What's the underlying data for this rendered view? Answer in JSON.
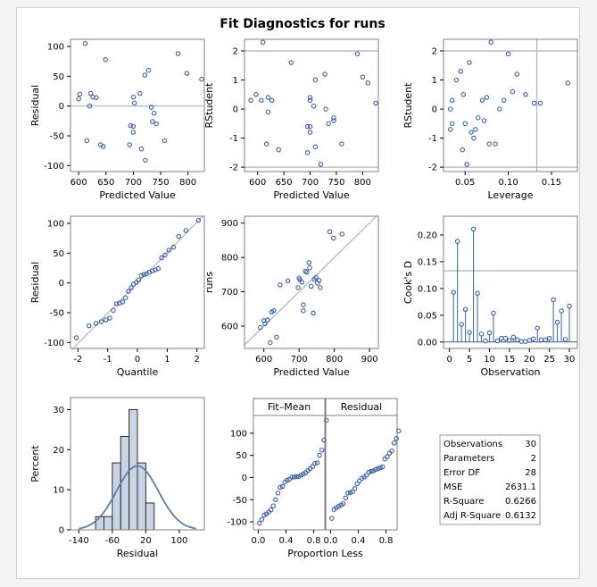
{
  "figure": {
    "title": "Fit Diagnostics for runs"
  },
  "colors": {
    "marker": "#3a5fa8",
    "refline": "#aeb4bd",
    "bar_fill": "#c9d4e4",
    "bar_stroke": "#2b2b2b",
    "normal_curve": "#5b7db1",
    "frame": "#7f7f7f"
  },
  "chart_data": [
    {
      "id": "resid_vs_pred",
      "type": "scatter",
      "xlabel": "Predicted Value",
      "ylabel": "Residual",
      "xlim": [
        585,
        830
      ],
      "ylim": [
        -110,
        112
      ],
      "xticks": [
        600,
        650,
        700,
        750,
        800
      ],
      "yticks": [
        -100,
        -50,
        0,
        50,
        100
      ],
      "hlines": [
        0
      ],
      "x": [
        602,
        612,
        620,
        649,
        622,
        632,
        600,
        626,
        645,
        615,
        700,
        712,
        721,
        702,
        695,
        700,
        738,
        733,
        742,
        735,
        715,
        722,
        757,
        728,
        700,
        693,
        640,
        782,
        798,
        825
      ],
      "y": [
        20,
        105,
        0,
        78,
        21,
        14,
        12,
        15,
        -68,
        -58,
        15,
        21,
        52,
        5,
        -33,
        -44,
        -12,
        -2,
        -30,
        -26,
        -72,
        -91,
        -58,
        60,
        -34,
        -65,
        -65,
        88,
        55,
        45
      ]
    },
    {
      "id": "rstudent_vs_pred",
      "type": "scatter",
      "xlabel": "Predicted Value",
      "ylabel": "RStudent",
      "xlim": [
        575,
        830
      ],
      "ylim": [
        -2.15,
        2.4
      ],
      "xticks": [
        600,
        650,
        700,
        750,
        800
      ],
      "yticks": [
        -2,
        -1,
        0,
        1,
        2
      ],
      "hlines": [
        -2,
        2
      ],
      "x": [
        587,
        597,
        607,
        610,
        620,
        627,
        620,
        640,
        664,
        617,
        700,
        707,
        710,
        700,
        695,
        700,
        735,
        730,
        745,
        745,
        710,
        720,
        760,
        728,
        700,
        695,
        790,
        800,
        810,
        825
      ],
      "y": [
        0.3,
        0.5,
        0.3,
        2.3,
        -0.1,
        0.3,
        0.4,
        -1.4,
        1.6,
        -1.2,
        0.3,
        0.1,
        1.0,
        0.4,
        -0.6,
        -0.8,
        -0.5,
        0,
        -0.3,
        -0.4,
        -1.3,
        -1.9,
        -1.2,
        1.2,
        -0.6,
        -1.5,
        1.9,
        1.1,
        0.9,
        0.2
      ]
    },
    {
      "id": "rstudent_vs_leverage",
      "type": "scatter",
      "xlabel": "Leverage",
      "ylabel": "RStudent",
      "xlim": [
        0.025,
        0.18
      ],
      "ylim": [
        -2.15,
        2.4
      ],
      "xticks": [
        0.05,
        0.1,
        0.15
      ],
      "yticks": [
        -2,
        -1,
        0,
        1,
        2
      ],
      "hlines": [
        -2,
        2
      ],
      "vlines": [
        0.133
      ],
      "x": [
        0.033,
        0.035,
        0.04,
        0.045,
        0.048,
        0.05,
        0.052,
        0.055,
        0.057,
        0.06,
        0.062,
        0.065,
        0.07,
        0.072,
        0.075,
        0.078,
        0.08,
        0.085,
        0.09,
        0.095,
        0.1,
        0.105,
        0.11,
        0.12,
        0.13,
        0.137,
        0.169,
        0.033,
        0.035,
        0.047
      ],
      "y": [
        0.0,
        0.3,
        1.0,
        1.3,
        0.5,
        -0.5,
        -1.9,
        1.6,
        -0.8,
        -1.0,
        -0.7,
        -0.3,
        0.3,
        -0.4,
        0.4,
        -1.2,
        2.3,
        -1.2,
        0.0,
        0.3,
        1.9,
        0.6,
        1.2,
        0.5,
        0.2,
        0.2,
        0.9,
        -0.7,
        -0.5,
        -1.4
      ]
    },
    {
      "id": "qq_residual",
      "type": "scatter",
      "xlabel": "Quantile",
      "ylabel": "Residual",
      "xlim": [
        -2.25,
        2.25
      ],
      "ylim": [
        -110,
        112
      ],
      "xticks": [
        -2,
        -1,
        0,
        1,
        2
      ],
      "yticks": [
        -100,
        -50,
        0,
        50,
        100
      ],
      "refline": [
        [
          -2.2,
          -112
        ],
        [
          2.2,
          112
        ]
      ],
      "x": [
        -2.05,
        -1.63,
        -1.39,
        -1.21,
        -1.06,
        -0.93,
        -0.81,
        -0.7,
        -0.6,
        -0.5,
        -0.4,
        -0.3,
        -0.21,
        -0.13,
        -0.04,
        0.04,
        0.13,
        0.21,
        0.3,
        0.4,
        0.5,
        0.6,
        0.7,
        0.81,
        0.93,
        1.06,
        1.21,
        1.39,
        1.63,
        2.05
      ],
      "y": [
        -92,
        -72,
        -68,
        -65,
        -62,
        -59,
        -46,
        -35,
        -34,
        -32,
        -25,
        -14,
        -8,
        -2,
        1,
        5,
        12,
        14,
        15,
        18,
        20,
        22,
        24,
        42,
        47,
        55,
        60,
        78,
        88,
        105
      ]
    },
    {
      "id": "runs_vs_pred",
      "type": "scatter",
      "xlabel": "Predicted Value",
      "ylabel": "runs",
      "xlim": [
        545,
        925
      ],
      "ylim": [
        535,
        920
      ],
      "xticks": [
        600,
        700,
        800,
        900
      ],
      "yticks": [
        600,
        700,
        800,
        900
      ],
      "refline": [
        [
          545,
          545
        ],
        [
          920,
          920
        ]
      ],
      "x": [
        590,
        600,
        603,
        610,
        618,
        622,
        628,
        636,
        646,
        668,
        697,
        700,
        702,
        708,
        712,
        712,
        718,
        722,
        728,
        730,
        734,
        740,
        743,
        748,
        752,
        757,
        760,
        787,
        798,
        822
      ],
      "y": [
        596,
        616,
        607,
        618,
        552,
        641,
        645,
        568,
        720,
        732,
        712,
        740,
        735,
        728,
        662,
        645,
        760,
        757,
        785,
        770,
        716,
        638,
        736,
        741,
        725,
        733,
        712,
        875,
        856,
        868
      ]
    },
    {
      "id": "cooks_d",
      "type": "needle",
      "xlabel": "Observation",
      "ylabel": "Cook's D",
      "xlim": [
        -1.5,
        32
      ],
      "ylim": [
        -0.012,
        0.235
      ],
      "xticks": [
        0,
        5,
        10,
        15,
        20,
        25,
        30
      ],
      "yticks": [
        0.0,
        0.05,
        0.1,
        0.15,
        0.2
      ],
      "threshold": 0.133,
      "x": [
        1,
        2,
        3,
        4,
        5,
        6,
        7,
        8,
        9,
        10,
        11,
        12,
        13,
        14,
        15,
        16,
        17,
        18,
        19,
        20,
        21,
        22,
        23,
        24,
        25,
        26,
        27,
        28,
        29,
        30
      ],
      "y": [
        0.093,
        0.188,
        0.033,
        0.061,
        0.018,
        0.211,
        0.091,
        0.015,
        0.002,
        0.017,
        0.054,
        0.002,
        0.007,
        0.007,
        0.003,
        0.009,
        0.004,
        0.001,
        0.001,
        0.003,
        0.006,
        0.026,
        0.004,
        0.004,
        0.007,
        0.079,
        0.037,
        0.058,
        0.005,
        0.067
      ]
    },
    {
      "id": "residual_hist",
      "type": "histogram",
      "xlabel": "Residual",
      "ylabel": "Percent",
      "xlim": [
        -160,
        160
      ],
      "ylim": [
        0,
        33
      ],
      "xticks": [
        -140,
        -60,
        20,
        100
      ],
      "yticks": [
        0,
        10,
        20,
        30
      ],
      "bin_width": 20,
      "bins": [
        -90,
        -70,
        -50,
        -30,
        -10,
        10,
        30,
        50,
        70,
        90
      ],
      "values": [
        3.3,
        3.3,
        16.7,
        23.3,
        30,
        16.7,
        6.7,
        0,
        0,
        0
      ],
      "normal": {
        "mean": 0,
        "sd": 50
      }
    },
    {
      "id": "rf_spread",
      "type": "scatter-panels",
      "xlabel": "Proportion Less",
      "panels": [
        "Fit–Mean",
        "Residual"
      ],
      "xlim": [
        -0.07,
        0.96
      ],
      "ylim": [
        -118,
        140
      ],
      "xticks": [
        0.0,
        0.4,
        0.8
      ],
      "yticks": [
        -100,
        -50,
        0,
        50,
        100
      ],
      "fit_mean": [
        -103,
        -95,
        -85,
        -82,
        -78,
        -73,
        -64,
        -50,
        -35,
        -22,
        -20,
        -10,
        -6,
        -4,
        1,
        1,
        2,
        2,
        5,
        8,
        11,
        16,
        20,
        25,
        32,
        33,
        50,
        62,
        84,
        129
      ],
      "residual": [
        -92,
        -72,
        -68,
        -65,
        -62,
        -59,
        -46,
        -35,
        -34,
        -32,
        -25,
        -14,
        -8,
        -2,
        1,
        5,
        12,
        14,
        15,
        18,
        20,
        22,
        24,
        42,
        47,
        55,
        60,
        78,
        88,
        105
      ]
    }
  ],
  "fit_statistics": [
    {
      "label": "Observations",
      "value": "30"
    },
    {
      "label": "Parameters",
      "value": "2"
    },
    {
      "label": "Error DF",
      "value": "28"
    },
    {
      "label": "MSE",
      "value": "2631.1"
    },
    {
      "label": "R-Square",
      "value": "0.6266"
    },
    {
      "label": "Adj R-Square",
      "value": "0.6132"
    }
  ]
}
